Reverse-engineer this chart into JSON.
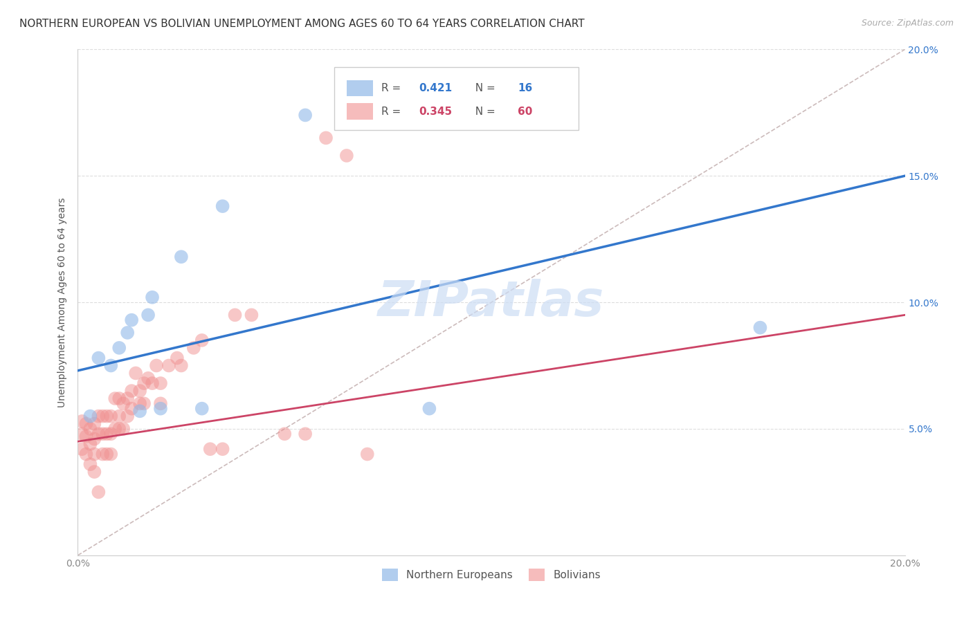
{
  "title": "NORTHERN EUROPEAN VS BOLIVIAN UNEMPLOYMENT AMONG AGES 60 TO 64 YEARS CORRELATION CHART",
  "source": "Source: ZipAtlas.com",
  "ylabel": "Unemployment Among Ages 60 to 64 years",
  "xlim": [
    0,
    0.2
  ],
  "ylim": [
    0,
    0.2
  ],
  "background_color": "#ffffff",
  "grid_color": "#dddddd",
  "blue_color": "#90b8e8",
  "pink_color": "#f09090",
  "blue_line_color": "#3377cc",
  "pink_line_color": "#cc4466",
  "grey_dash_color": "#ccbbbb",
  "watermark_color": "#ccddf5",
  "blue_scatter_x": [
    0.003,
    0.008,
    0.01,
    0.012,
    0.013,
    0.015,
    0.017,
    0.018,
    0.02,
    0.025,
    0.03,
    0.035,
    0.055,
    0.085,
    0.165,
    0.005
  ],
  "blue_scatter_y": [
    0.055,
    0.075,
    0.082,
    0.088,
    0.093,
    0.057,
    0.095,
    0.102,
    0.058,
    0.118,
    0.058,
    0.138,
    0.174,
    0.058,
    0.09,
    0.078
  ],
  "pink_scatter_x": [
    0.001,
    0.001,
    0.001,
    0.002,
    0.002,
    0.002,
    0.003,
    0.003,
    0.003,
    0.004,
    0.004,
    0.004,
    0.004,
    0.005,
    0.005,
    0.005,
    0.006,
    0.006,
    0.006,
    0.007,
    0.007,
    0.007,
    0.008,
    0.008,
    0.008,
    0.009,
    0.009,
    0.01,
    0.01,
    0.01,
    0.011,
    0.011,
    0.012,
    0.012,
    0.013,
    0.013,
    0.014,
    0.015,
    0.015,
    0.016,
    0.016,
    0.017,
    0.018,
    0.019,
    0.02,
    0.02,
    0.022,
    0.024,
    0.025,
    0.028,
    0.03,
    0.032,
    0.035,
    0.038,
    0.042,
    0.05,
    0.055,
    0.06,
    0.065,
    0.07
  ],
  "pink_scatter_y": [
    0.053,
    0.048,
    0.042,
    0.052,
    0.047,
    0.04,
    0.05,
    0.044,
    0.036,
    0.052,
    0.046,
    0.04,
    0.033,
    0.055,
    0.048,
    0.025,
    0.055,
    0.048,
    0.04,
    0.055,
    0.048,
    0.04,
    0.055,
    0.048,
    0.04,
    0.062,
    0.05,
    0.062,
    0.055,
    0.05,
    0.06,
    0.05,
    0.062,
    0.055,
    0.065,
    0.058,
    0.072,
    0.065,
    0.06,
    0.068,
    0.06,
    0.07,
    0.068,
    0.075,
    0.068,
    0.06,
    0.075,
    0.078,
    0.075,
    0.082,
    0.085,
    0.042,
    0.042,
    0.095,
    0.095,
    0.048,
    0.048,
    0.165,
    0.158,
    0.04
  ],
  "blue_line_x": [
    0.0,
    0.2
  ],
  "blue_line_y": [
    0.073,
    0.15
  ],
  "pink_line_x": [
    0.0,
    0.2
  ],
  "pink_line_y": [
    0.045,
    0.095
  ],
  "grey_dash_line_x": [
    0.0,
    0.2
  ],
  "grey_dash_line_y": [
    0.0,
    0.2
  ],
  "ytick_positions": [
    0.05,
    0.1,
    0.15,
    0.2
  ],
  "ytick_labels": [
    "5.0%",
    "10.0%",
    "15.0%",
    "20.0%"
  ],
  "xtick_positions": [
    0.0,
    0.05,
    0.1,
    0.15,
    0.2
  ],
  "xtick_labels": [
    "0.0%",
    "",
    "",
    "",
    "20.0%"
  ],
  "watermark": "ZIPatlas",
  "title_fontsize": 11,
  "axis_label_fontsize": 10,
  "tick_fontsize": 10,
  "source_fontsize": 9
}
